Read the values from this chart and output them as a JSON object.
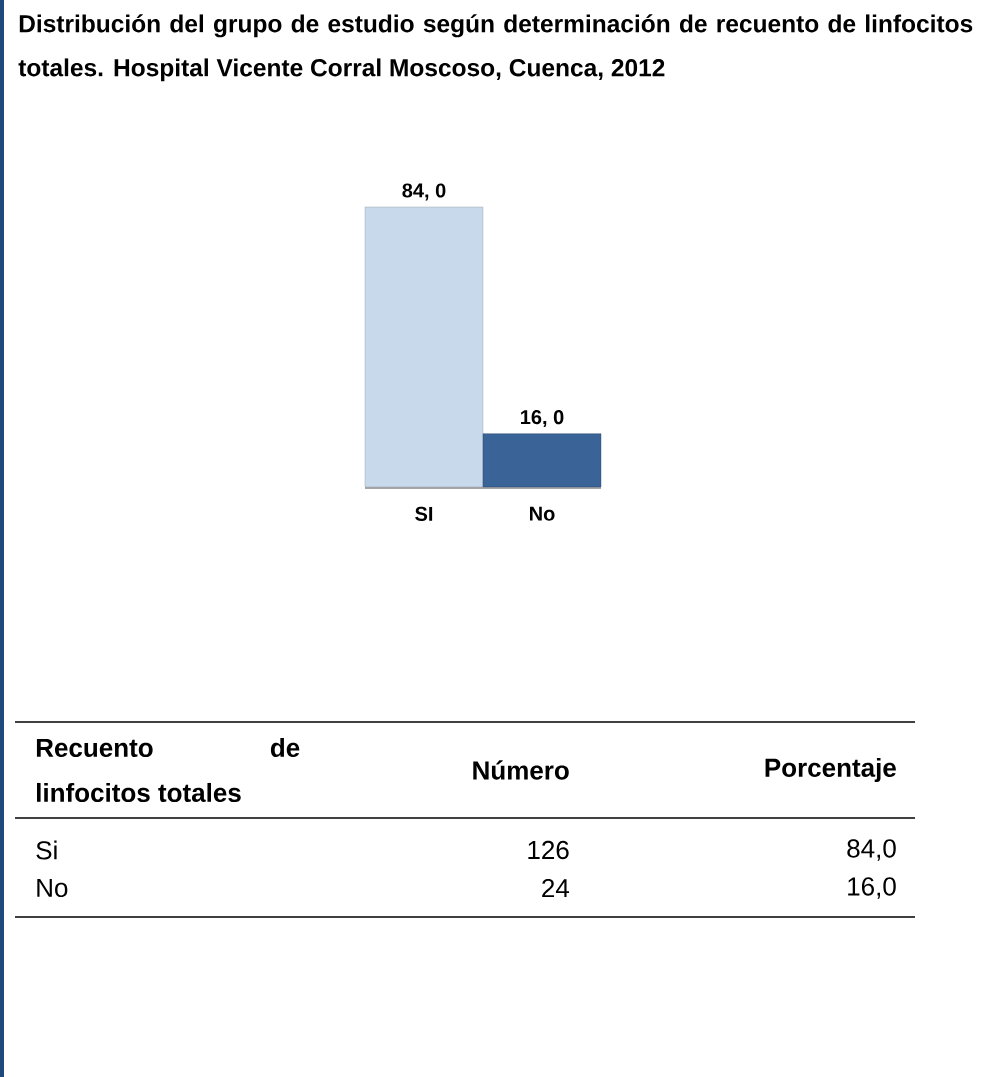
{
  "chart_data": {
    "type": "bar",
    "title": "Distribución del grupo de estudio según determinación de recuento de linfocitos totales.  Hospital Vicente Corral Moscoso, Cuenca, 2012",
    "categories": [
      "SI",
      "No"
    ],
    "values": [
      84,
      16
    ],
    "colors": [
      "#c9d9ec",
      "#3a6398"
    ],
    "value_labels": [
      "84, 0",
      "16, 0"
    ],
    "annotations": [
      "Recuento de linfocitos totales",
      "Número",
      "Porcentaje",
      "Si",
      "126",
      "84,0",
      "No",
      "24",
      "16,0"
    ]
  }
}
